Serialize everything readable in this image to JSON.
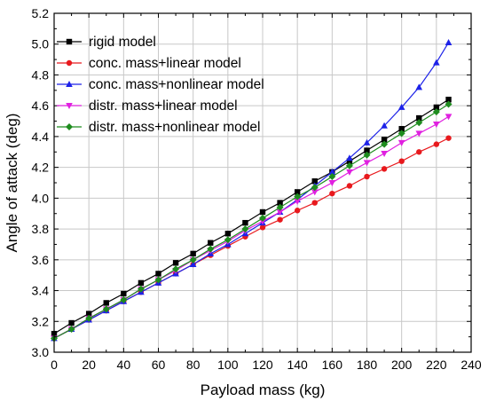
{
  "chart_data": {
    "type": "line",
    "title": "",
    "xlabel": "Payload mass (kg)",
    "ylabel": "Angle of attack (deg)",
    "xlim": [
      0,
      240
    ],
    "ylim": [
      3.0,
      5.2
    ],
    "xticks": [
      0,
      20,
      40,
      60,
      80,
      100,
      120,
      140,
      160,
      180,
      200,
      220,
      240
    ],
    "yticks": [
      3.0,
      3.2,
      3.4,
      3.6,
      3.8,
      4.0,
      4.2,
      4.4,
      4.6,
      4.8,
      5.0,
      5.2
    ],
    "xtick_labels": [
      "0",
      "20",
      "40",
      "60",
      "80",
      "100",
      "120",
      "140",
      "160",
      "180",
      "200",
      "220",
      "240"
    ],
    "ytick_labels": [
      "3.0",
      "3.2",
      "3.4",
      "3.6",
      "3.8",
      "4.0",
      "4.2",
      "4.4",
      "4.6",
      "4.8",
      "5.0",
      "5.2"
    ],
    "grid": true,
    "legend_position": "top-left",
    "x": [
      0,
      10,
      20,
      30,
      40,
      50,
      60,
      70,
      80,
      90,
      100,
      110,
      120,
      130,
      140,
      150,
      160,
      170,
      180,
      190,
      200,
      210,
      220,
      227
    ],
    "series": [
      {
        "name": "rigid model",
        "color": "#000000",
        "marker": "square",
        "values": [
          3.12,
          3.19,
          3.25,
          3.32,
          3.38,
          3.45,
          3.51,
          3.58,
          3.64,
          3.71,
          3.77,
          3.84,
          3.91,
          3.97,
          4.04,
          4.11,
          4.17,
          4.24,
          4.31,
          4.38,
          4.45,
          4.52,
          4.59,
          4.64
        ]
      },
      {
        "name": "conc. mass+linear model",
        "color": "#e8191d",
        "marker": "circle",
        "values": [
          3.09,
          3.15,
          3.21,
          3.27,
          3.33,
          3.39,
          3.45,
          3.51,
          3.57,
          3.63,
          3.69,
          3.75,
          3.81,
          3.86,
          3.92,
          3.97,
          4.03,
          4.08,
          4.14,
          4.19,
          4.24,
          4.3,
          4.35,
          4.39
        ]
      },
      {
        "name": "conc. mass+nonlinear model",
        "color": "#1d22e8",
        "marker": "triangle-up",
        "values": [
          3.09,
          3.15,
          3.21,
          3.27,
          3.33,
          3.39,
          3.45,
          3.51,
          3.57,
          3.64,
          3.7,
          3.77,
          3.84,
          3.91,
          3.99,
          4.08,
          4.17,
          4.26,
          4.36,
          4.47,
          4.59,
          4.72,
          4.88,
          5.01
        ]
      },
      {
        "name": "distr. mass+linear model",
        "color": "#e020e0",
        "marker": "triangle-down",
        "values": [
          3.09,
          3.15,
          3.22,
          3.28,
          3.34,
          3.41,
          3.47,
          3.53,
          3.6,
          3.66,
          3.72,
          3.79,
          3.85,
          3.91,
          3.98,
          4.04,
          4.1,
          4.17,
          4.23,
          4.29,
          4.36,
          4.42,
          4.48,
          4.53
        ]
      },
      {
        "name": "distr. mass+nonlinear model",
        "color": "#1e8c1e",
        "marker": "diamond",
        "values": [
          3.09,
          3.15,
          3.22,
          3.28,
          3.34,
          3.41,
          3.47,
          3.54,
          3.6,
          3.67,
          3.73,
          3.8,
          3.87,
          3.94,
          4.01,
          4.07,
          4.14,
          4.21,
          4.28,
          4.35,
          4.42,
          4.49,
          4.56,
          4.61
        ]
      }
    ]
  }
}
